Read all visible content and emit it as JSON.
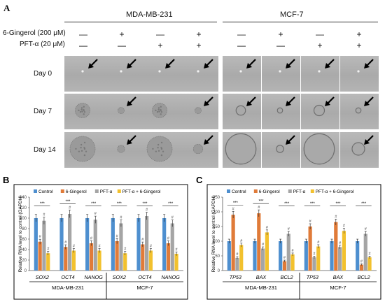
{
  "panel_a": {
    "letter": "A",
    "cell_lines": [
      "MDA-MB-231",
      "MCF-7"
    ],
    "row_labels": [
      "6-Gingerol (200 μM)",
      "PFT-α (20 μM)"
    ],
    "treatment_signs": {
      "gingerol": [
        "—",
        "+",
        "—",
        "+",
        "—",
        "+",
        "—",
        "+"
      ],
      "pft": [
        "—",
        "—",
        "+",
        "+",
        "—",
        "—",
        "+",
        "+"
      ]
    },
    "days": [
      "Day 0",
      "Day 7",
      "Day 14"
    ],
    "sphere_level": [
      [
        0,
        0,
        0,
        0,
        0,
        0,
        0,
        0
      ],
      [
        1,
        0.2,
        1,
        0.2,
        0.5,
        0.1,
        0.6,
        0.1
      ],
      [
        2,
        0.3,
        2,
        0.5,
        2.5,
        0.3,
        2.5,
        0.8
      ]
    ]
  },
  "chart_data": [
    {
      "type": "bar",
      "panel": "B",
      "ylabel": "Relative RNA level to control (GAPDH)",
      "ylim": [
        0,
        140
      ],
      "yticks": [
        "0",
        "20",
        "40",
        "60",
        "80",
        "100",
        "120",
        "140"
      ],
      "categories": [
        "SOX2",
        "OCT4",
        "NANOG",
        "SOX2",
        "OCT4",
        "NANOG"
      ],
      "groups": [
        "MDA-MB-231",
        "MCF-7"
      ],
      "series": [
        {
          "name": "Control",
          "color": "#4e8fcf",
          "values": [
            100,
            100,
            100,
            100,
            100,
            100
          ]
        },
        {
          "name": "6-Gingerol",
          "color": "#e07b39",
          "values": [
            55,
            45,
            52,
            56,
            50,
            52
          ]
        },
        {
          "name": "PFT-α",
          "color": "#a5a5a5",
          "values": [
            95,
            108,
            97,
            90,
            104,
            90
          ]
        },
        {
          "name": "PFT-α + 6-Gingerol",
          "color": "#f2c12e",
          "values": [
            33,
            38,
            38,
            33,
            38,
            32
          ]
        }
      ],
      "annotations": {
        "sig": "***",
        "mark": "#"
      }
    },
    {
      "type": "bar",
      "panel": "C",
      "ylabel": "Relative RNA level to control (GAPDH)",
      "ylim": [
        0,
        250
      ],
      "yticks": [
        "0",
        "50",
        "100",
        "150",
        "200",
        "250"
      ],
      "categories": [
        "TP53",
        "BAX",
        "BCL2",
        "TP53",
        "BAX",
        "BCL2"
      ],
      "groups": [
        "MDA-MB-231",
        "MCF-7"
      ],
      "series": [
        {
          "name": "Control",
          "color": "#4e8fcf",
          "values": [
            100,
            100,
            100,
            100,
            100,
            100
          ]
        },
        {
          "name": "6-Gingerol",
          "color": "#e07b39",
          "values": [
            190,
            195,
            32,
            150,
            165,
            20
          ]
        },
        {
          "name": "PFT-α",
          "color": "#a5a5a5",
          "values": [
            43,
            75,
            125,
            45,
            80,
            125
          ]
        },
        {
          "name": "PFT-α + 6-Gingerol",
          "color": "#f2c12e",
          "values": [
            87,
            130,
            55,
            82,
            135,
            45
          ]
        }
      ],
      "annotations": {
        "sig": "***",
        "mark": "#"
      }
    }
  ]
}
